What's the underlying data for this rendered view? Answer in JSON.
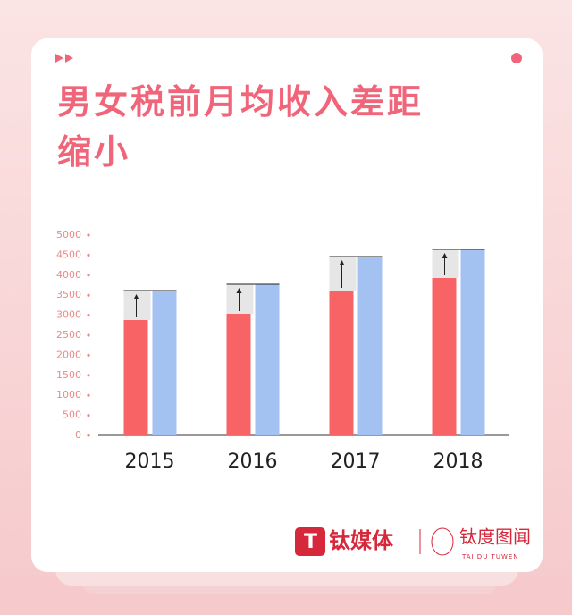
{
  "chart_data": {
    "type": "bar",
    "title": "男女税前月均收入差距缩小",
    "categories": [
      "2015",
      "2016",
      "2017",
      "2018"
    ],
    "series": [
      {
        "color": "#f86466",
        "values": [
          2880,
          3036,
          3616,
          3929
        ]
      },
      {
        "color": "#a3c2f2",
        "values": [
          3616,
          3772,
          4464,
          4643
        ]
      }
    ],
    "ylim": [
      0,
      5000
    ],
    "yticks": [
      0,
      500,
      1000,
      1500,
      2000,
      2500,
      3000,
      3500,
      4000,
      4500,
      5000
    ],
    "gap_color": "#e6e6e6"
  },
  "brand": {
    "name": "钛媒体",
    "sub": "钛度图闻",
    "sub_en": "TAI DU TUWEN"
  }
}
